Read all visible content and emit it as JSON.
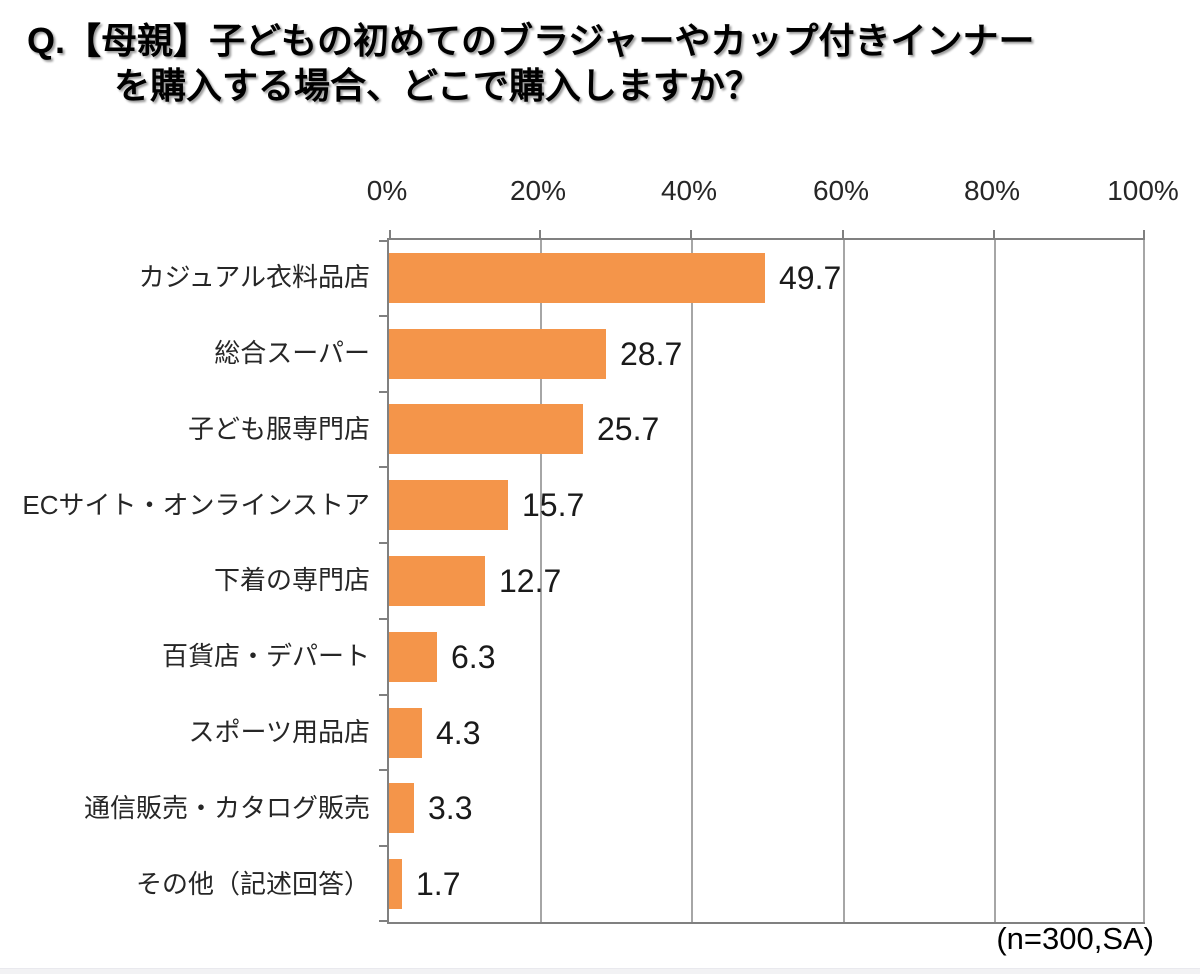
{
  "title": {
    "line1": "Q.【母親】子どもの初めてのブラジャーやカップ付きインナー",
    "line2": "を購入する場合、どこで購入しますか？"
  },
  "note": "(n=300,SA)",
  "colors": {
    "bar": "#F4954A",
    "axis": "#808080",
    "grid": "#A6A6A6",
    "text": "#262626",
    "title": "#000000"
  },
  "chart_data": {
    "type": "bar",
    "orientation": "horizontal",
    "title": "Q.【母親】子どもの初めてのブラジャーやカップ付きインナーを購入する場合、どこで購入しますか？",
    "categories": [
      "カジュアル衣料品店",
      "総合スーパー",
      "子ども服専門店",
      "ECサイト・オンラインストア",
      "下着の専門店",
      "百貨店・デパート",
      "スポーツ用品店",
      "通信販売・カタログ販売",
      "その他（記述回答）"
    ],
    "values": [
      49.7,
      28.7,
      25.7,
      15.7,
      12.7,
      6.3,
      4.3,
      3.3,
      1.7
    ],
    "value_labels": [
      "49.7",
      "28.7",
      "25.7",
      "15.7",
      "12.7",
      "6.3",
      "4.3",
      "3.3",
      "1.7"
    ],
    "x_tick_labels": [
      "0%",
      "20%",
      "40%",
      "60%",
      "80%",
      "100%"
    ],
    "x_tick_positions": [
      0,
      20,
      40,
      60,
      80,
      100
    ],
    "xlim": [
      0,
      100
    ],
    "grid": true,
    "legend": false,
    "bar_color": "#F4954A",
    "n_label": "(n=300,SA)"
  }
}
